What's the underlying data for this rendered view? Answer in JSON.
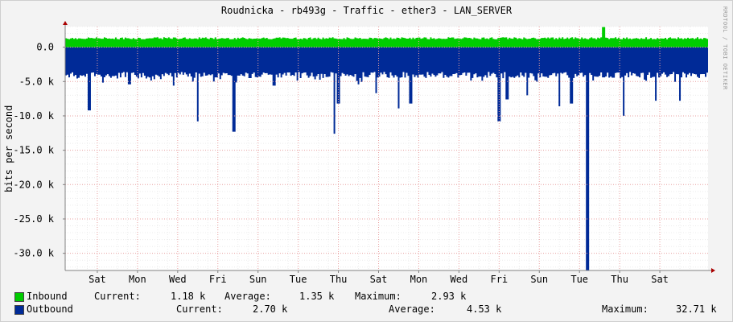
{
  "chart_data": {
    "type": "area",
    "title": "Roudnicka - rb493g - Traffic - ether3 - LAN_SERVER",
    "watermark": "RRDTOOL / TOBI OETIKER",
    "ylabel": "bits per second",
    "ylim": [
      -32500,
      3000
    ],
    "yticks": [
      {
        "value": 0,
        "label": "0.0"
      },
      {
        "value": -5000,
        "label": "-5.0 k"
      },
      {
        "value": -10000,
        "label": "-10.0 k"
      },
      {
        "value": -15000,
        "label": "-15.0 k"
      },
      {
        "value": -20000,
        "label": "-20.0 k"
      },
      {
        "value": -25000,
        "label": "-25.0 k"
      },
      {
        "value": -30000,
        "label": "-30.0 k"
      }
    ],
    "xlim": [
      0,
      16
    ],
    "xticks": [
      {
        "value": 0.8,
        "label": "Sat"
      },
      {
        "value": 1.8,
        "label": "Mon"
      },
      {
        "value": 2.8,
        "label": "Wed"
      },
      {
        "value": 3.8,
        "label": "Fri"
      },
      {
        "value": 4.8,
        "label": "Sun"
      },
      {
        "value": 5.8,
        "label": "Tue"
      },
      {
        "value": 6.8,
        "label": "Thu"
      },
      {
        "value": 7.8,
        "label": "Sat"
      },
      {
        "value": 8.8,
        "label": "Mon"
      },
      {
        "value": 9.8,
        "label": "Wed"
      },
      {
        "value": 10.8,
        "label": "Fri"
      },
      {
        "value": 11.8,
        "label": "Sun"
      },
      {
        "value": 12.8,
        "label": "Tue"
      },
      {
        "value": 13.8,
        "label": "Thu"
      },
      {
        "value": 14.8,
        "label": "Sat"
      }
    ],
    "grid": true,
    "colors": {
      "inbound": "#00cc00",
      "outbound": "#002a97",
      "grid_major": "#e8a0a0",
      "grid_minor": "#ececec",
      "axis": "#808080",
      "arrow": "#aa0000",
      "plot_bg": "#ffffff"
    },
    "series": [
      {
        "name": "Inbound",
        "base": 1300,
        "spikes": [
          {
            "x": 13.4,
            "value": 2930
          }
        ]
      },
      {
        "name": "Outbound",
        "base": -3600,
        "spikes": [
          {
            "x": 0.6,
            "value": -9200
          },
          {
            "x": 1.2,
            "value": -4200
          },
          {
            "x": 1.6,
            "value": -5400
          },
          {
            "x": 2.7,
            "value": -5600
          },
          {
            "x": 3.3,
            "value": -10800
          },
          {
            "x": 3.7,
            "value": -5000
          },
          {
            "x": 4.2,
            "value": -12300
          },
          {
            "x": 4.6,
            "value": -4500
          },
          {
            "x": 5.2,
            "value": -5600
          },
          {
            "x": 6.7,
            "value": -12600
          },
          {
            "x": 6.8,
            "value": -8200
          },
          {
            "x": 7.3,
            "value": -5400
          },
          {
            "x": 7.75,
            "value": -6700
          },
          {
            "x": 8.3,
            "value": -8900
          },
          {
            "x": 8.6,
            "value": -8200
          },
          {
            "x": 9.5,
            "value": -4300
          },
          {
            "x": 10.8,
            "value": -10800
          },
          {
            "x": 11.0,
            "value": -7600
          },
          {
            "x": 11.5,
            "value": -7000
          },
          {
            "x": 12.3,
            "value": -8600
          },
          {
            "x": 12.6,
            "value": -8200
          },
          {
            "x": 13.0,
            "value": -32710
          },
          {
            "x": 13.4,
            "value": -4400
          },
          {
            "x": 13.9,
            "value": -10000
          },
          {
            "x": 14.3,
            "value": -4400
          },
          {
            "x": 14.7,
            "value": -7800
          },
          {
            "x": 15.3,
            "value": -7800
          }
        ]
      }
    ],
    "legend": [
      {
        "name": "Inbound",
        "current": "1.18 k",
        "average": "1.35 k",
        "maximum": "2.93 k"
      },
      {
        "name": "Outbound",
        "current": "2.70 k",
        "average": "4.53 k",
        "maximum": "32.71 k"
      }
    ],
    "legend_labels": {
      "current": "Current:",
      "average": "Average:",
      "maximum": "Maximum:"
    }
  }
}
